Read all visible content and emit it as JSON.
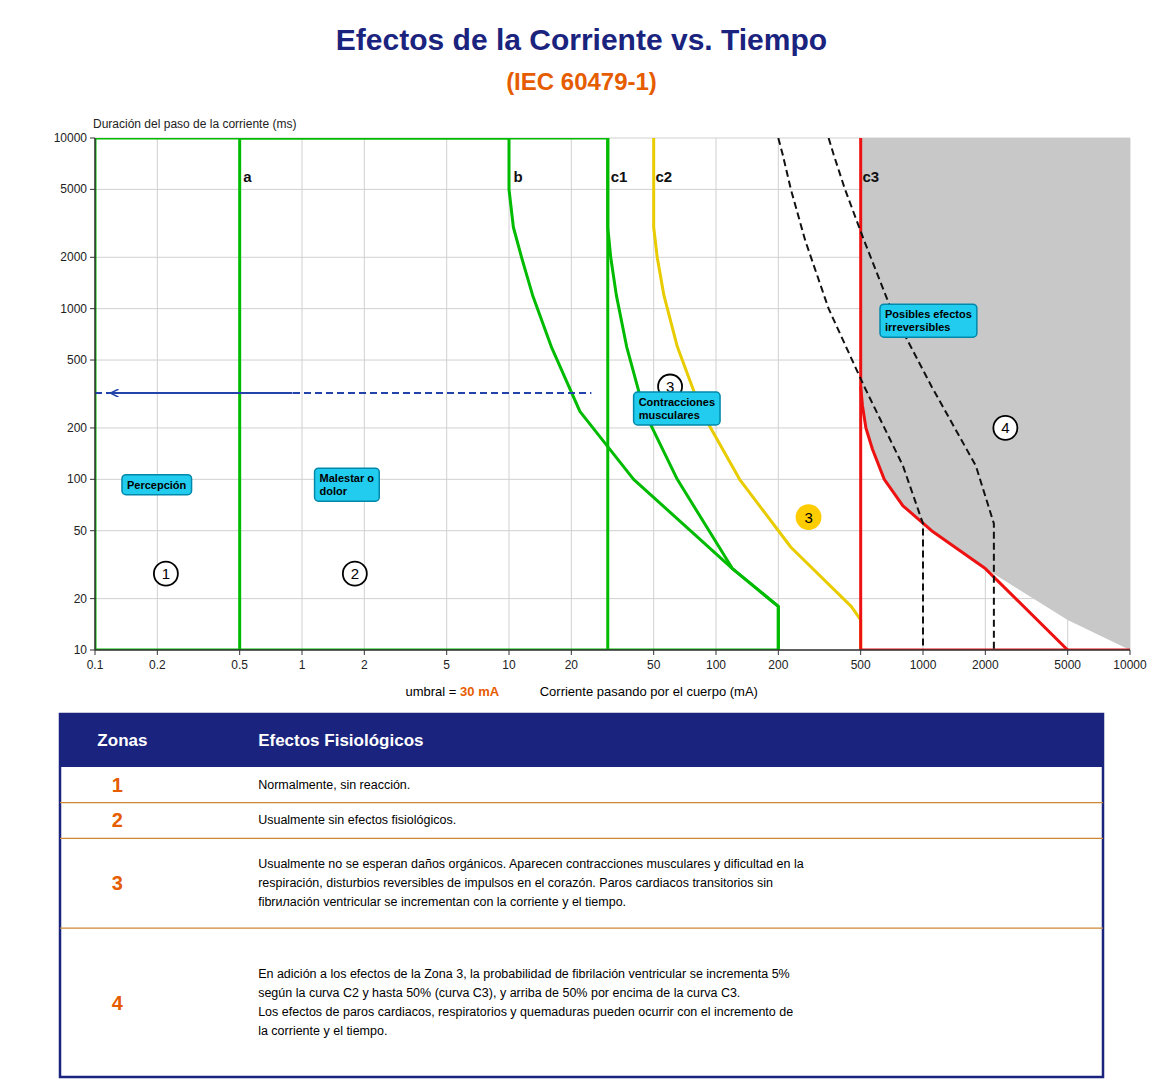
{
  "chart_data": {
    "type": "line",
    "title": "Efectos de la Corriente vs. Tiempo",
    "title_color": "#1a237e",
    "subtitle": "(IEC 60479-1)",
    "subtitle_color": "#e65c00",
    "x_label": "Corriente pasando por el cuerpo (mA)",
    "y_label": "Duración del paso de la corriente (ms)",
    "log": true,
    "grid": true,
    "xlim": [
      0.1,
      10000
    ],
    "ylim": [
      10,
      10000
    ],
    "xticks": [
      0.1,
      0.2,
      0.5,
      1,
      2,
      5,
      10,
      20,
      50,
      100,
      200,
      500,
      1000,
      2000,
      5000,
      10000
    ],
    "yticks": [
      10,
      20,
      50,
      100,
      200,
      500,
      1000,
      2000,
      5000,
      10000
    ],
    "series": [
      {
        "type": "area",
        "color": "#c8c8c8",
        "x": [
          500,
          500,
          510,
          530,
          570,
          650,
          800,
          1100,
          2000,
          5000,
          10000
        ],
        "values": [
          10000,
          350,
          270,
          200,
          150,
          100,
          70,
          50,
          30,
          15,
          10
        ]
      },
      {
        "color": "#00bb00",
        "line_style": "solid",
        "x": [
          0.1,
          0.1
        ],
        "values": [
          10,
          10000
        ]
      },
      {
        "color": "#00bb00",
        "line_style": "solid",
        "x": [
          0.1,
          200
        ],
        "values": [
          10,
          10
        ]
      },
      {
        "color": "#00bb00",
        "line_style": "solid",
        "x": [
          0.1,
          10
        ],
        "values": [
          10000,
          10000
        ]
      },
      {
        "color": "#00bb00",
        "line_style": "solid",
        "x": [
          0.5,
          0.5
        ],
        "values": [
          10,
          10000
        ]
      },
      {
        "color": "#00bb00",
        "line_style": "solid",
        "x": [
          10,
          10,
          10.5,
          11.5,
          13,
          16,
          22,
          40,
          120,
          200,
          200
        ],
        "values": [
          10000,
          5000,
          3000,
          2000,
          1200,
          600,
          250,
          100,
          30,
          18,
          10
        ]
      },
      {
        "color": "#00bb00",
        "line_style": "solid",
        "x": [
          0.5,
          10
        ],
        "values": [
          10000,
          10000
        ]
      },
      {
        "color": "#00bb00",
        "line_style": "solid",
        "x": [
          30,
          30,
          31,
          33,
          37,
          45,
          65,
          120,
          200,
          200
        ],
        "values": [
          10000,
          3000,
          2000,
          1200,
          600,
          250,
          100,
          30,
          18,
          10
        ]
      },
      {
        "color": "#00bb00",
        "line_style": "solid",
        "x": [
          10,
          30
        ],
        "values": [
          10000,
          10000
        ]
      },
      {
        "color": "#e8cc00",
        "line_style": "solid",
        "x": [
          50,
          50,
          52,
          56,
          65,
          85,
          130,
          230,
          450,
          500,
          500
        ],
        "values": [
          10000,
          3000,
          2000,
          1200,
          600,
          250,
          100,
          40,
          18,
          15,
          10
        ]
      },
      {
        "color": "#ee1111",
        "line_style": "solid",
        "x": [
          500,
          500,
          510,
          530,
          570,
          650,
          800,
          1100,
          2000,
          5000
        ],
        "values": [
          10000,
          350,
          270,
          200,
          150,
          100,
          70,
          50,
          30,
          10
        ]
      },
      {
        "color": "#ee1111",
        "line_style": "solid",
        "x": [
          500,
          10000
        ],
        "values": [
          10,
          10
        ]
      },
      {
        "color": "#ee1111",
        "line_style": "solid",
        "x": [
          500,
          500
        ],
        "values": [
          10,
          350
        ]
      },
      {
        "color": "#111111",
        "line_style": "dashed",
        "x": [
          200,
          210,
          230,
          270,
          350,
          520,
          800,
          1000,
          1000
        ],
        "values": [
          10000,
          8000,
          5000,
          2500,
          1000,
          350,
          120,
          55,
          10
        ]
      },
      {
        "color": "#111111",
        "line_style": "dashed",
        "x": [
          350,
          370,
          420,
          520,
          700,
          1100,
          1800,
          2200,
          2200
        ],
        "values": [
          10000,
          8000,
          5000,
          2500,
          1000,
          350,
          120,
          55,
          10
        ]
      },
      {
        "color": "#2244aa",
        "line_style": "dashed",
        "x": [
          0.1,
          25
        ],
        "values": [
          320,
          320
        ]
      },
      {
        "color": "#00bb00",
        "line_style": "solid",
        "x": [
          30,
          30
        ],
        "values": [
          10,
          10000
        ]
      }
    ],
    "arrows": [
      {
        "x": 0.9,
        "y": 320,
        "x_end": 0.12,
        "y_end": 320,
        "color": "#2244aa"
      }
    ],
    "annotations": [
      {
        "text": "a",
        "x": 0.52,
        "y": 5500,
        "shape": "none",
        "text_color": "#111111"
      },
      {
        "text": "b",
        "x": 10.5,
        "y": 5500,
        "shape": "none",
        "text_color": "#111111"
      },
      {
        "text": "c1",
        "x": 31,
        "y": 5500,
        "shape": "none",
        "text_color": "#111111"
      },
      {
        "text": "c2",
        "x": 51,
        "y": 5500,
        "shape": "none",
        "text_color": "#111111"
      },
      {
        "text": "c3",
        "x": 510,
        "y": 5500,
        "shape": "none",
        "text_color": "#111111"
      },
      {
        "text": "1",
        "x": 0.22,
        "y": 28,
        "shape": "circle",
        "color": "#ffffff",
        "edge_color": "#000000"
      },
      {
        "text": "2",
        "x": 1.8,
        "y": 28,
        "shape": "circle",
        "color": "#ffffff",
        "edge_color": "#000000"
      },
      {
        "text": "3",
        "x": 60,
        "y": 350,
        "shape": "circle",
        "color": "#ffffff",
        "edge_color": "#000000"
      },
      {
        "text": "3",
        "x": 280,
        "y": 60,
        "shape": "circle",
        "color": "#ffcc00",
        "edge_color": "#ffcc00"
      },
      {
        "text": "4",
        "x": 2500,
        "y": 200,
        "shape": "circle",
        "color": "#ffffff",
        "edge_color": "#000000"
      },
      {
        "text": "Percepción",
        "x": 0.135,
        "y": 93,
        "shape": "box",
        "color": "#22ccee",
        "edge_color": "#0088aa"
      },
      {
        "text": "Malestar o\ndolor",
        "x": 1.15,
        "y": 93,
        "shape": "box",
        "color": "#22ccee",
        "edge_color": "#0088aa"
      },
      {
        "text": "Contracciones\nmusculares",
        "x": 40,
        "y": 260,
        "shape": "box",
        "color": "#22ccee",
        "edge_color": "#0088aa"
      },
      {
        "text": "Posibles efectos\nirreversibles",
        "x": 620,
        "y": 850,
        "shape": "box",
        "color": "#22ccee",
        "edge_color": "#0088aa"
      }
    ],
    "threshold_text": "umbral = ",
    "threshold_value_text": "30 mA",
    "threshold_color": "#e65c00",
    "table": {
      "header": [
        "Zonas",
        "Efectos Fisiológicos"
      ],
      "header_color": "#1a237e",
      "header_text_color": "#ffffff",
      "border_color": "#1a237e",
      "divider_color": "#cc8833",
      "zone_color": "#e65c00",
      "rows": [
        {
          "zone": "1",
          "effect": "Normalmente, sin reacción."
        },
        {
          "zone": "2",
          "effect": "Usualmente sin efectos fisiológicos."
        },
        {
          "zone": "3",
          "effect": "Usualmente no se esperan daños orgánicos. Aparecen contracciones musculares y dificultad en la\nrespiración, disturbios reversibles de impulsos en el corazón. Paros cardiacos transitorios sin\nfibrилación ventricular se incrementan con la corriente y el tiempo."
        },
        {
          "zone": "4",
          "effect": "En adición a los efectos de la Zona 3, la probabilidad de fibrilación ventricular se incrementa 5%\nsegún la curva C2 y hasta 50% (curva C3), y arriba de 50% por encima de la curva C3.\nLos efectos de paros cardiacos, respiratorios y quemaduras pueden ocurrir con el incremento de\nla corriente y el tiempo."
        }
      ]
    }
  }
}
